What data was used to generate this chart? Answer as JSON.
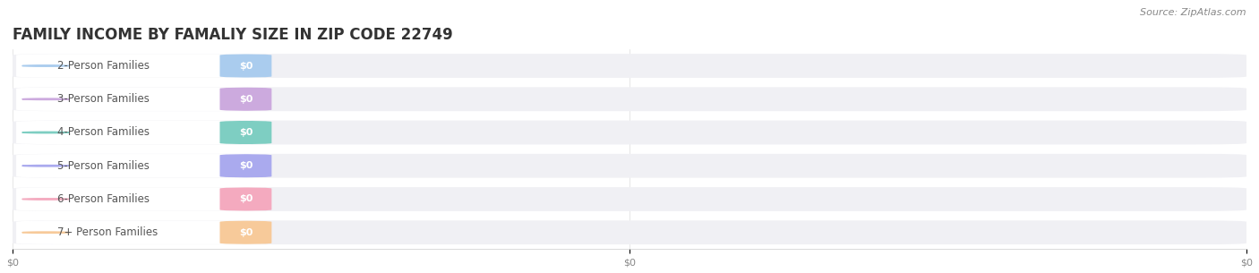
{
  "title": "FAMILY INCOME BY FAMALIY SIZE IN ZIP CODE 22749",
  "source_text": "Source: ZipAtlas.com",
  "categories": [
    "2-Person Families",
    "3-Person Families",
    "4-Person Families",
    "5-Person Families",
    "6-Person Families",
    "7+ Person Families"
  ],
  "values": [
    0,
    0,
    0,
    0,
    0,
    0
  ],
  "bar_colors": [
    "#aaccee",
    "#ccaade",
    "#7ecec2",
    "#aaaaee",
    "#f4aabf",
    "#f7ca9a"
  ],
  "background_color": "#ffffff",
  "row_bg_color": "#f0f0f4",
  "x_tick_labels": [
    "$0",
    "$0",
    "$0"
  ],
  "title_fontsize": 12,
  "label_fontsize": 8.5,
  "value_fontsize": 8,
  "source_fontsize": 8
}
